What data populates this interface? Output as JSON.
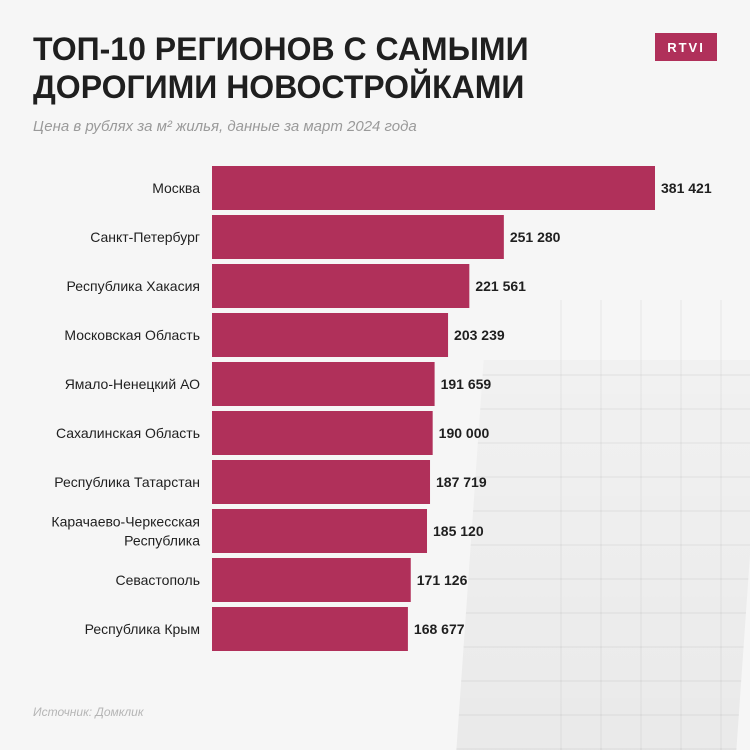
{
  "title_lines": [
    "ТОП-10 РЕГИОНОВ С САМЫМИ",
    "ДОРОГИМИ НОВОСТРОЙКАМИ"
  ],
  "logo_text": "RTVI",
  "subtitle": "Цена в рублях за м² жилья, данные за март 2024 года",
  "source": "Источник: Домклик",
  "colors": {
    "bar": "#b0305a",
    "logo": "#b0305a"
  },
  "chart_data": {
    "type": "bar",
    "orientation": "horizontal",
    "title": "ТОП-10 РЕГИОНОВ С САМЫМИ ДОРОГИМИ НОВОСТРОЙКАМИ",
    "subtitle": "Цена в рублях за м² жилья, данные за март 2024 года",
    "categories": [
      [
        "Москва"
      ],
      [
        "Санкт-Петербург"
      ],
      [
        "Республика Хакасия"
      ],
      [
        "Московская Область"
      ],
      [
        "Ямало-Ненецкий АО"
      ],
      [
        "Сахалинская Область"
      ],
      [
        "Республика Татарстан"
      ],
      [
        "Карачаево-Черкесская",
        "Республика"
      ],
      [
        "Севастополь"
      ],
      [
        "Республика Крым"
      ]
    ],
    "values": [
      381421,
      251280,
      221561,
      203239,
      191659,
      190000,
      187719,
      185120,
      171126,
      168677
    ],
    "value_labels": [
      "381 421",
      "251 280",
      "221 561",
      "203 239",
      "191 659",
      "190 000",
      "187 719",
      "185 120",
      "171 126",
      "168 677"
    ],
    "xlim": [
      0,
      381421
    ],
    "grid": false,
    "legend": "none"
  }
}
